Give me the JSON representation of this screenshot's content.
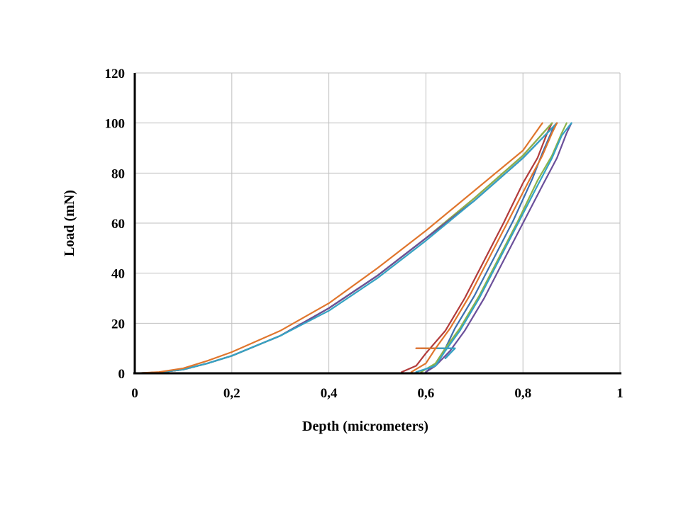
{
  "chart_data": {
    "type": "line",
    "xlabel": "Depth (micrometers)",
    "ylabel": "Load (mN)",
    "xlim": [
      0,
      1
    ],
    "ylim": [
      0,
      120
    ],
    "x_ticks": [
      "0",
      "0,2",
      "0,4",
      "0,6",
      "0,8",
      "1"
    ],
    "y_ticks": [
      "0",
      "20",
      "40",
      "60",
      "80",
      "100",
      "120"
    ],
    "grid": true,
    "legend": "none",
    "series": [
      {
        "color": "#3d6fb0",
        "loading": [
          [
            0,
            0
          ],
          [
            0.05,
            0.4
          ],
          [
            0.1,
            1.5
          ],
          [
            0.15,
            4
          ],
          [
            0.2,
            7
          ],
          [
            0.3,
            15
          ],
          [
            0.4,
            26
          ],
          [
            0.5,
            39
          ],
          [
            0.6,
            54
          ],
          [
            0.7,
            69
          ],
          [
            0.8,
            86
          ],
          [
            0.87,
            100
          ]
        ],
        "unloading": [
          [
            0.87,
            100
          ],
          [
            0.86,
            97
          ],
          [
            0.84,
            88
          ],
          [
            0.82,
            78
          ],
          [
            0.78,
            61
          ],
          [
            0.74,
            46
          ],
          [
            0.7,
            31
          ],
          [
            0.66,
            18
          ],
          [
            0.64,
            10
          ],
          [
            0.62,
            4
          ],
          [
            0.6,
            0.5
          ]
        ],
        "hold_low": [
          [
            0.59,
            10
          ],
          [
            0.66,
            10
          ],
          [
            0.64,
            6
          ]
        ]
      },
      {
        "color": "#b23b3b",
        "loading": [
          [
            0,
            0
          ],
          [
            0.05,
            0.4
          ],
          [
            0.1,
            1.5
          ],
          [
            0.15,
            4
          ],
          [
            0.2,
            7
          ],
          [
            0.3,
            15
          ],
          [
            0.4,
            26
          ],
          [
            0.5,
            39
          ],
          [
            0.6,
            54
          ],
          [
            0.7,
            70
          ],
          [
            0.8,
            87
          ],
          [
            0.86,
            100
          ]
        ],
        "unloading": [
          [
            0.86,
            100
          ],
          [
            0.85,
            96
          ],
          [
            0.83,
            86
          ],
          [
            0.8,
            76
          ],
          [
            0.76,
            60
          ],
          [
            0.72,
            45
          ],
          [
            0.68,
            30
          ],
          [
            0.64,
            17
          ],
          [
            0.6,
            8
          ],
          [
            0.58,
            3
          ],
          [
            0.55,
            0.5
          ]
        ],
        "hold_low": [
          [
            0.58,
            10
          ],
          [
            0.63,
            10
          ]
        ]
      },
      {
        "color": "#8bb34a",
        "loading": [
          [
            0,
            0
          ],
          [
            0.05,
            0.4
          ],
          [
            0.1,
            1.5
          ],
          [
            0.15,
            4
          ],
          [
            0.2,
            7
          ],
          [
            0.3,
            15
          ],
          [
            0.4,
            26
          ],
          [
            0.5,
            39
          ],
          [
            0.6,
            54
          ],
          [
            0.7,
            70
          ],
          [
            0.8,
            87
          ],
          [
            0.86,
            100
          ]
        ],
        "unloading": [
          [
            0.89,
            100
          ],
          [
            0.88,
            96
          ],
          [
            0.86,
            87
          ],
          [
            0.83,
            77
          ],
          [
            0.79,
            61
          ],
          [
            0.75,
            46
          ],
          [
            0.71,
            31
          ],
          [
            0.67,
            18
          ],
          [
            0.64,
            10
          ],
          [
            0.62,
            4
          ],
          [
            0.59,
            0.5
          ]
        ],
        "hold_low": [
          [
            0.6,
            10
          ],
          [
            0.64,
            10
          ]
        ]
      },
      {
        "color": "#6b4f9a",
        "loading": [
          [
            0,
            0
          ],
          [
            0.05,
            0.4
          ],
          [
            0.1,
            1.5
          ],
          [
            0.15,
            4
          ],
          [
            0.2,
            7
          ],
          [
            0.3,
            15
          ],
          [
            0.4,
            26
          ],
          [
            0.5,
            39
          ],
          [
            0.6,
            54
          ],
          [
            0.7,
            69
          ],
          [
            0.8,
            86
          ],
          [
            0.87,
            100
          ]
        ],
        "unloading": [
          [
            0.9,
            100
          ],
          [
            0.89,
            96
          ],
          [
            0.87,
            86
          ],
          [
            0.84,
            75
          ],
          [
            0.8,
            60
          ],
          [
            0.76,
            45
          ],
          [
            0.72,
            30
          ],
          [
            0.68,
            17
          ],
          [
            0.65,
            9
          ],
          [
            0.62,
            3
          ],
          [
            0.6,
            0.5
          ]
        ],
        "hold_low": [
          [
            0.61,
            10
          ],
          [
            0.65,
            10
          ]
        ]
      },
      {
        "color": "#35a3c4",
        "loading": [
          [
            0,
            0
          ],
          [
            0.05,
            0.4
          ],
          [
            0.1,
            1.5
          ],
          [
            0.15,
            4
          ],
          [
            0.2,
            7
          ],
          [
            0.3,
            15
          ],
          [
            0.4,
            25
          ],
          [
            0.5,
            38
          ],
          [
            0.6,
            53
          ],
          [
            0.7,
            69
          ],
          [
            0.8,
            86
          ],
          [
            0.87,
            100
          ]
        ],
        "unloading": [
          [
            0.9,
            100
          ],
          [
            0.88,
            95
          ],
          [
            0.86,
            86
          ],
          [
            0.83,
            75
          ],
          [
            0.79,
            60
          ],
          [
            0.75,
            45
          ],
          [
            0.71,
            30
          ],
          [
            0.67,
            17
          ],
          [
            0.64,
            9
          ],
          [
            0.62,
            3
          ],
          [
            0.58,
            0.5
          ]
        ],
        "hold_low": [
          [
            0.62,
            10
          ],
          [
            0.66,
            10
          ],
          [
            0.64,
            6
          ]
        ]
      },
      {
        "color": "#e0762d",
        "loading": [
          [
            0,
            0
          ],
          [
            0.05,
            0.5
          ],
          [
            0.1,
            2
          ],
          [
            0.15,
            5
          ],
          [
            0.2,
            8.5
          ],
          [
            0.3,
            17
          ],
          [
            0.4,
            28
          ],
          [
            0.5,
            42
          ],
          [
            0.6,
            57
          ],
          [
            0.7,
            73
          ],
          [
            0.8,
            89
          ],
          [
            0.84,
            100
          ]
        ],
        "unloading": [
          [
            0.87,
            100
          ],
          [
            0.86,
            96
          ],
          [
            0.84,
            87
          ],
          [
            0.81,
            76
          ],
          [
            0.77,
            61
          ],
          [
            0.73,
            46
          ],
          [
            0.69,
            31
          ],
          [
            0.65,
            18
          ],
          [
            0.62,
            10
          ],
          [
            0.6,
            4
          ],
          [
            0.57,
            0.5
          ]
        ],
        "hold_low": [
          [
            0.58,
            10
          ],
          [
            0.62,
            10
          ]
        ]
      }
    ]
  }
}
